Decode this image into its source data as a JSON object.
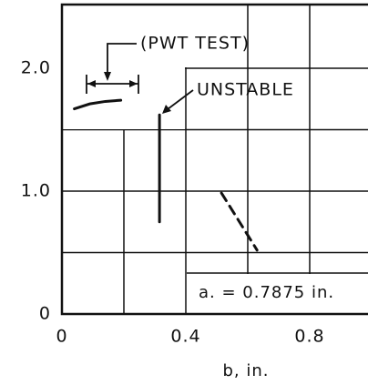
{
  "chart_data": {
    "type": "line",
    "xlabel": "b, in.",
    "xlim": [
      0,
      1.0
    ],
    "ylim": [
      0,
      2.5
    ],
    "xticks": [
      0,
      0.4,
      0.8
    ],
    "yticks": [
      0,
      {
        "value": 1,
        "label": "1.0"
      },
      {
        "value": 2,
        "label": "2.0"
      }
    ],
    "xgrid": [
      0.2,
      0.4,
      0.6,
      0.8
    ],
    "ygrid": [
      0.5,
      1.0,
      1.5,
      2.0
    ],
    "grid": true,
    "series": [
      {
        "color": "#111",
        "dash": false,
        "x": [
          0.04,
          0.09,
          0.14,
          0.19
        ],
        "values": [
          1.67,
          1.71,
          1.73,
          1.74
        ]
      },
      {
        "color": "#111",
        "dash": false,
        "x": [
          0.315,
          0.315
        ],
        "values": [
          0.75,
          1.62
        ]
      },
      {
        "color": "#111",
        "dash": true,
        "x": [
          0.515,
          0.63
        ],
        "values": [
          0.985,
          0.52
        ]
      }
    ],
    "annotations": [
      {
        "text": "(PWT TEST)"
      },
      {
        "text": "UNSTABLE"
      },
      {
        "text": "a. = 0.7875 in."
      }
    ]
  }
}
